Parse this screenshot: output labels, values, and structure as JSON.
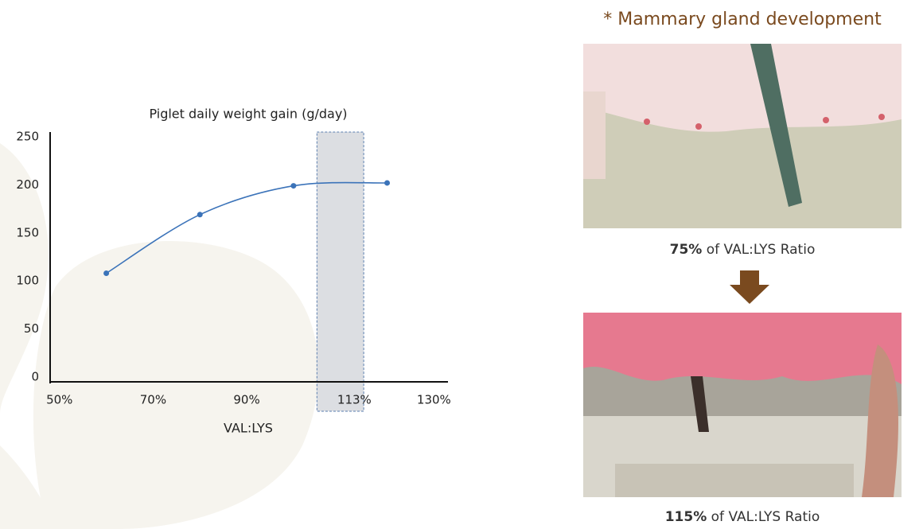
{
  "chart_data": {
    "type": "line",
    "title": "Piglet daily weight gain (g/day)",
    "xlabel": "VAL:LYS",
    "x": [
      60,
      80,
      100,
      120
    ],
    "values": [
      113,
      174,
      204,
      207
    ],
    "color": "#3b73b9",
    "xlim": [
      48,
      133
    ],
    "xticks": [
      {
        "value": 50,
        "label": "50%"
      },
      {
        "value": 70,
        "label": "70%"
      },
      {
        "value": 90,
        "label": "90%"
      },
      {
        "value": 113,
        "label": "113%"
      },
      {
        "value": 130,
        "label": "130%"
      }
    ],
    "ylim": [
      0,
      250
    ],
    "yticks": [
      0,
      50,
      100,
      150,
      200,
      250
    ],
    "grid": false,
    "highlight_range": [
      105,
      115
    ],
    "highlight_color": "#dcdee2"
  },
  "panel": {
    "title": "* Mammary gland development",
    "images": [
      {
        "value": "75%",
        "text": "of VAL:LYS Ratio"
      },
      {
        "value": "115%",
        "text": "of VAL:LYS Ratio"
      }
    ]
  }
}
